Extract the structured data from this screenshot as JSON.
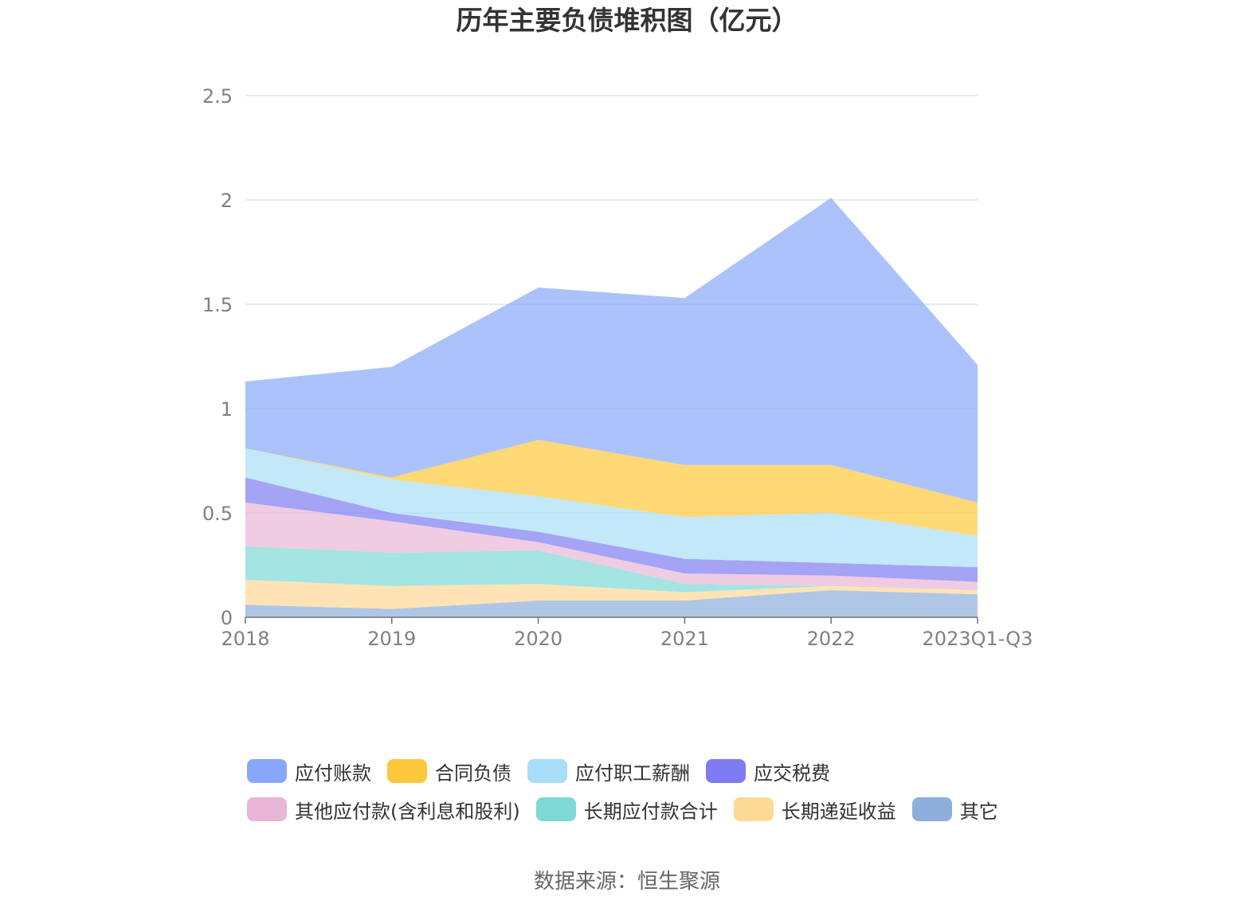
{
  "chart_data": {
    "type": "area",
    "stacked": true,
    "title": "历年主要负债堆积图（亿元）",
    "categories": [
      "2018",
      "2019",
      "2020",
      "2021",
      "2022",
      "2023Q1-Q3"
    ],
    "ylim": [
      0,
      2.5
    ],
    "yticks": [
      "0",
      "0.5",
      "1",
      "1.5",
      "2",
      "2.5"
    ],
    "grid": true,
    "legend_position": "bottom",
    "series": [
      {
        "name": "其它",
        "color": "#8eaedc",
        "values": [
          0.06,
          0.04,
          0.08,
          0.08,
          0.13,
          0.11
        ]
      },
      {
        "name": "长期递延收益",
        "color": "#fdd996",
        "values": [
          0.12,
          0.11,
          0.08,
          0.04,
          0.02,
          0.02
        ]
      },
      {
        "name": "长期应付款合计",
        "color": "#7dd8d6",
        "values": [
          0.16,
          0.16,
          0.16,
          0.04,
          0.0,
          0.0
        ]
      },
      {
        "name": "其他应付款(含利息和股利)",
        "color": "#e8b6d6",
        "values": [
          0.21,
          0.15,
          0.04,
          0.05,
          0.05,
          0.04
        ]
      },
      {
        "name": "应交税费",
        "color": "#7d7cf2",
        "values": [
          0.12,
          0.04,
          0.05,
          0.07,
          0.06,
          0.07
        ]
      },
      {
        "name": "应付职工薪酬",
        "color": "#a8def7",
        "values": [
          0.14,
          0.16,
          0.17,
          0.2,
          0.24,
          0.15
        ]
      },
      {
        "name": "合同负债",
        "color": "#fdc93a",
        "values": [
          0.0,
          0.01,
          0.27,
          0.25,
          0.23,
          0.16
        ]
      },
      {
        "name": "应付账款",
        "color": "#87a8fa",
        "values": [
          0.32,
          0.53,
          0.73,
          0.8,
          1.28,
          0.66
        ]
      }
    ]
  },
  "legend": {
    "row1": [
      "应付账款",
      "合同负债",
      "应付职工薪酬",
      "应交税费"
    ],
    "row2": [
      "其他应付款(含利息和股利)",
      "长期应付款合计",
      "长期递延收益",
      "其它"
    ]
  },
  "source": "数据来源：恒生聚源"
}
